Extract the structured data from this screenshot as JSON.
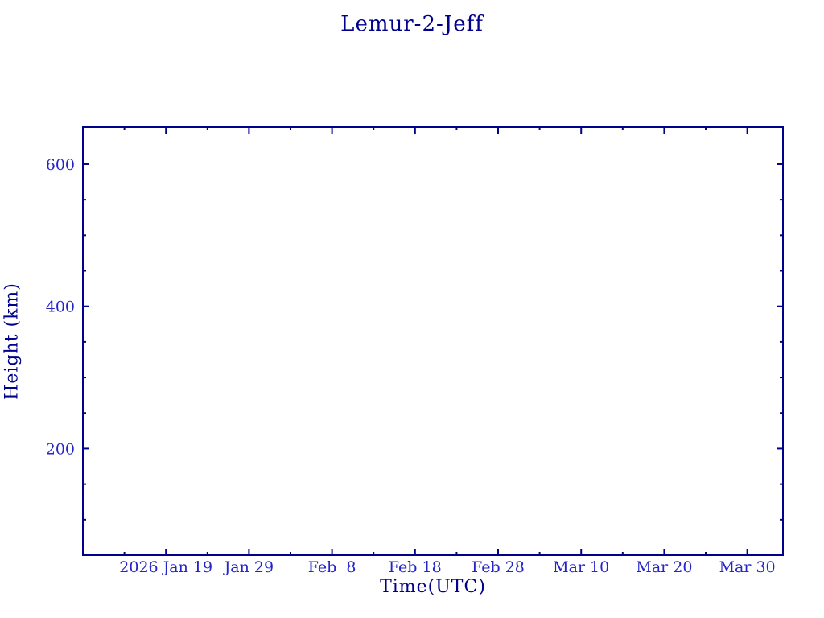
{
  "chart_data": {
    "type": "line",
    "title": "Lemur-2-Jeff",
    "xlabel": "Time(UTC)",
    "ylabel": "Height (km)",
    "grid": false,
    "legend": null,
    "frame_color": "#00008B",
    "tick_label_color": "#2424C8",
    "background": "#FFFFFF",
    "xlim_days": [
      0,
      84.3
    ],
    "x_major_ticks": [
      {
        "day": 10,
        "label": "2026 Jan 19"
      },
      {
        "day": 20,
        "label": "Jan 29"
      },
      {
        "day": 30,
        "label": "Feb  8"
      },
      {
        "day": 40,
        "label": "Feb 18"
      },
      {
        "day": 50,
        "label": "Feb 28"
      },
      {
        "day": 60,
        "label": "Mar 10"
      },
      {
        "day": 70,
        "label": "Mar 20"
      },
      {
        "day": 80,
        "label": "Mar 30"
      }
    ],
    "x_minor_tick_days": [
      5,
      15,
      25,
      35,
      45,
      55,
      65,
      75
    ],
    "ylim": [
      50,
      652
    ],
    "y_major_ticks": [
      {
        "value": 200,
        "label": "200"
      },
      {
        "value": 400,
        "label": "400"
      },
      {
        "value": 600,
        "label": "600"
      }
    ],
    "y_minor_tick_values": [
      100,
      150,
      250,
      300,
      350,
      450,
      500,
      550
    ],
    "series": []
  }
}
